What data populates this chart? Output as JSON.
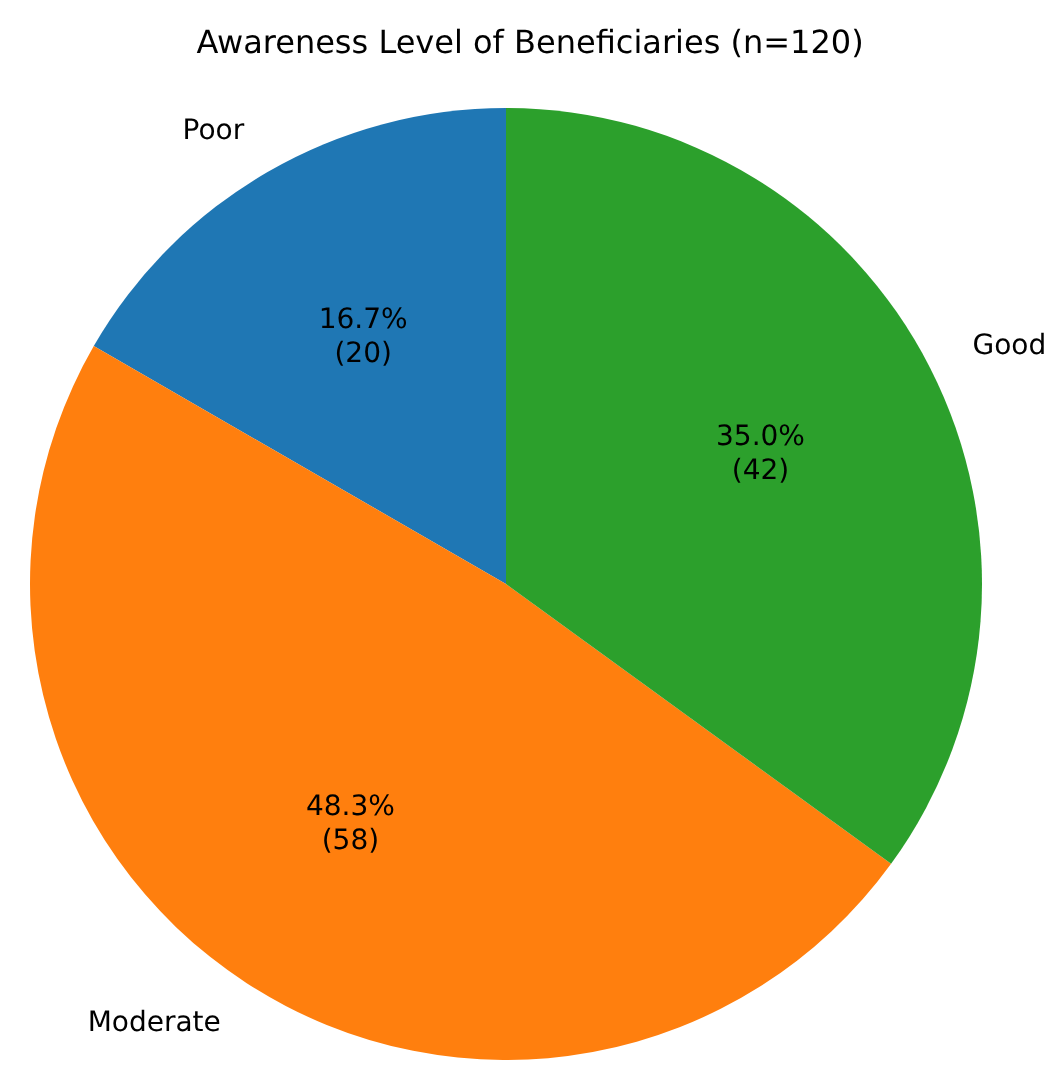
{
  "chart_data": {
    "type": "pie",
    "title": "Awareness Level of Beneficiaries (n=120)",
    "categories": [
      "Poor",
      "Moderate",
      "Good"
    ],
    "values": [
      20,
      58,
      42
    ],
    "colors": [
      "#1f77b4",
      "#ff7f0e",
      "#2ca02c"
    ],
    "value_labels": [
      "16.7%\n(20)",
      "48.3%\n(58)",
      "35.0%\n(42)"
    ]
  }
}
